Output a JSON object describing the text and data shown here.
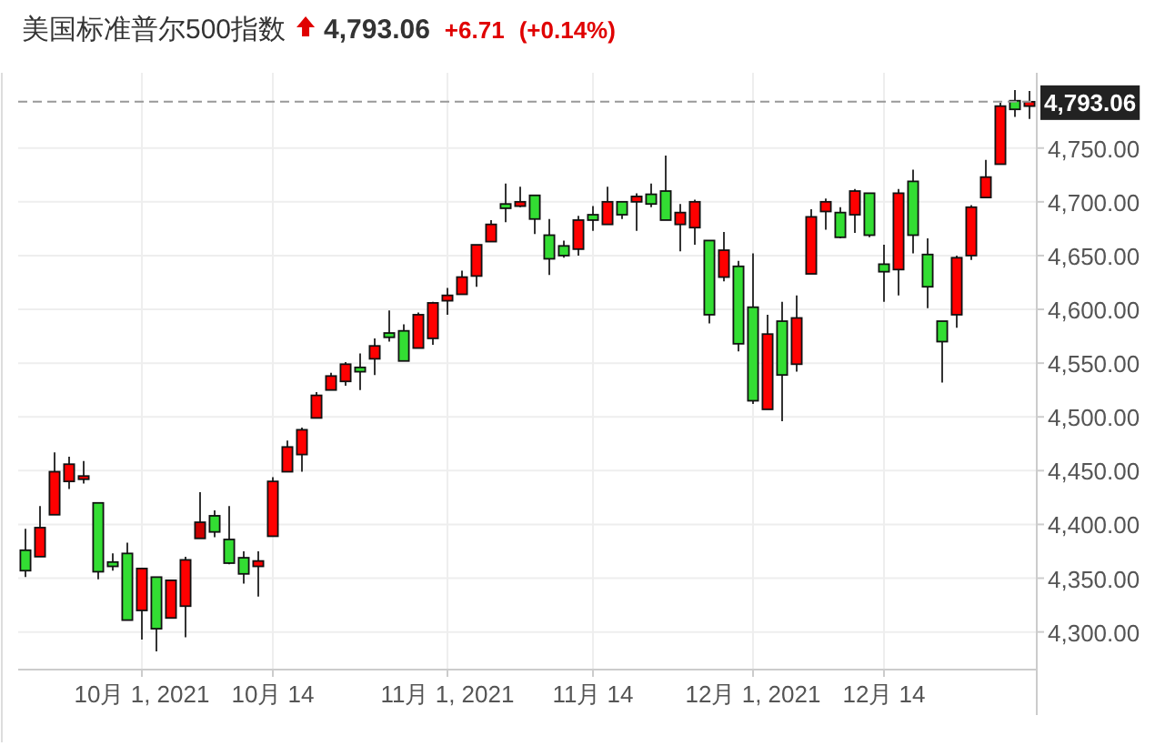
{
  "chart_data": {
    "type": "candlestick",
    "title": "美国标准普尔500指数",
    "annotations": [
      "4,793.06",
      "+6.71",
      "(+0.14%)"
    ],
    "categories": [
      null,
      null,
      null,
      null,
      null,
      null,
      null,
      null,
      "10月 1, 2021",
      null,
      null,
      null,
      null,
      null,
      null,
      null,
      null,
      "10月 14",
      null,
      null,
      null,
      null,
      null,
      null,
      null,
      null,
      null,
      null,
      null,
      "11月 1, 2021",
      null,
      null,
      null,
      null,
      null,
      null,
      null,
      null,
      null,
      "11月 14",
      null,
      null,
      null,
      null,
      null,
      null,
      null,
      null,
      null,
      null,
      "12月 1, 2021",
      null,
      null,
      null,
      null,
      null,
      null,
      null,
      null,
      "12月 14",
      null,
      null,
      null,
      null,
      null,
      null,
      null,
      null,
      null,
      null
    ],
    "ohlc": [
      [
        4376,
        4396,
        4351,
        4357
      ],
      [
        4370,
        4417,
        4370,
        4397
      ],
      [
        4409,
        4467,
        4409,
        4449
      ],
      [
        4440,
        4463,
        4433,
        4456
      ],
      [
        4442,
        4459,
        4438,
        4445
      ],
      [
        4420,
        4420,
        4349,
        4356
      ],
      [
        4365,
        4373,
        4357,
        4361
      ],
      [
        4373,
        4383,
        4311,
        4311
      ],
      [
        4320,
        4359,
        4293,
        4359
      ],
      [
        4351,
        4351,
        4282,
        4303
      ],
      [
        4313,
        4348,
        4313,
        4348
      ],
      [
        4324,
        4370,
        4295,
        4367
      ],
      [
        4387,
        4430,
        4387,
        4402
      ],
      [
        4408,
        4413,
        4388,
        4393
      ],
      [
        4386,
        4417,
        4363,
        4364
      ],
      [
        4369,
        4375,
        4345,
        4354
      ],
      [
        4361,
        4375,
        4333,
        4366
      ],
      [
        4389,
        4444,
        4389,
        4440
      ],
      [
        4449,
        4478,
        4449,
        4472
      ],
      [
        4465,
        4490,
        4449,
        4488
      ],
      [
        4499,
        4523,
        4499,
        4520
      ],
      [
        4525,
        4541,
        4525,
        4538
      ],
      [
        4533,
        4551,
        4529,
        4549
      ],
      [
        4546,
        4559,
        4525,
        4542
      ],
      [
        4554,
        4573,
        4539,
        4566
      ],
      [
        4578,
        4599,
        4570,
        4574
      ],
      [
        4580,
        4586,
        4552,
        4552
      ],
      [
        4564,
        4597,
        4564,
        4595
      ],
      [
        4573,
        4607,
        4567,
        4606
      ],
      [
        4608,
        4620,
        4595,
        4613
      ],
      [
        4614,
        4636,
        4614,
        4630
      ],
      [
        4631,
        4660,
        4621,
        4660
      ],
      [
        4663,
        4683,
        4663,
        4679
      ],
      [
        4698,
        4717,
        4681,
        4694
      ],
      [
        4696,
        4714,
        4695,
        4700
      ],
      [
        4706,
        4706,
        4670,
        4684
      ],
      [
        4669,
        4684,
        4632,
        4647
      ],
      [
        4659,
        4664,
        4648,
        4650
      ],
      [
        4656,
        4687,
        4650,
        4683
      ],
      [
        4688,
        4696,
        4673,
        4683
      ],
      [
        4679,
        4714,
        4679,
        4700
      ],
      [
        4700,
        4700,
        4684,
        4688
      ],
      [
        4700,
        4708,
        4673,
        4705
      ],
      [
        4707,
        4717,
        4695,
        4698
      ],
      [
        4710,
        4743,
        4683,
        4683
      ],
      [
        4679,
        4698,
        4654,
        4690
      ],
      [
        4676,
        4702,
        4660,
        4700
      ],
      [
        4664,
        4664,
        4587,
        4595
      ],
      [
        4630,
        4672,
        4626,
        4655
      ],
      [
        4640,
        4645,
        4561,
        4568
      ],
      [
        4602,
        4652,
        4512,
        4515
      ],
      [
        4507,
        4595,
        4507,
        4577
      ],
      [
        4589,
        4607,
        4496,
        4539
      ],
      [
        4549,
        4613,
        4542,
        4592
      ],
      [
        4633,
        4693,
        4633,
        4686
      ],
      [
        4691,
        4703,
        4674,
        4700
      ],
      [
        4690,
        4695,
        4666,
        4667
      ],
      [
        4688,
        4712,
        4671,
        4710
      ],
      [
        4708,
        4708,
        4667,
        4669
      ],
      [
        4642,
        4660,
        4607,
        4635
      ],
      [
        4637,
        4712,
        4613,
        4708
      ],
      [
        4719,
        4730,
        4652,
        4669
      ],
      [
        4651,
        4666,
        4601,
        4621
      ],
      [
        4589,
        4589,
        4532,
        4570
      ],
      [
        4595,
        4650,
        4583,
        4648
      ],
      [
        4650,
        4697,
        4646,
        4695
      ],
      [
        4704,
        4739,
        4704,
        4723
      ],
      [
        4735,
        4792,
        4735,
        4789
      ],
      [
        4794,
        4804,
        4779,
        4786
      ],
      [
        4789,
        4803,
        4777,
        4793.06
      ]
    ],
    "colors": [
      "#33dd33",
      "#ff0000",
      "#ff0000",
      "#ff0000",
      "#ff0000",
      "#33dd33",
      "#33dd33",
      "#33dd33",
      "#ff0000",
      "#33dd33",
      "#ff0000",
      "#ff0000",
      "#cc0000",
      "#33dd33",
      "#33dd33",
      "#33dd33",
      "#ff0000",
      "#ff0000",
      "#ff0000",
      "#ff0000",
      "#ff0000",
      "#ff0000",
      "#ff0000",
      "#33dd33",
      "#ff0000",
      "#33dd33",
      "#33dd33",
      "#ff0000",
      "#ff0000",
      "#ff0000",
      "#ff0000",
      "#ff0000",
      "#ff0000",
      "#33dd33",
      "#ff0000",
      "#33dd33",
      "#33dd33",
      "#33dd33",
      "#ff0000",
      "#33dd33",
      "#ff0000",
      "#33dd33",
      "#ff0000",
      "#33dd33",
      "#33dd33",
      "#ff0000",
      "#ff0000",
      "#33dd33",
      "#ff0000",
      "#33dd33",
      "#33dd33",
      "#ff0000",
      "#33dd33",
      "#ff0000",
      "#ff0000",
      "#ff0000",
      "#33dd33",
      "#ff0000",
      "#33dd33",
      "#33dd33",
      "#ff0000",
      "#33dd33",
      "#33dd33",
      "#33dd33",
      "#ff0000",
      "#ff0000",
      "#ff0000",
      "#ff0000",
      "#33dd33",
      "#ff0000"
    ],
    "ylim": [
      4265,
      4820
    ],
    "yticks": [
      {
        "value": 4300,
        "label": "4,300.00"
      },
      {
        "value": 4350,
        "label": "4,350.00"
      },
      {
        "value": 4400,
        "label": "4,400.00"
      },
      {
        "value": 4450,
        "label": "4,450.00"
      },
      {
        "value": 4500,
        "label": "4,500.00"
      },
      {
        "value": 4550,
        "label": "4,550.00"
      },
      {
        "value": 4600,
        "label": "4,600.00"
      },
      {
        "value": 4650,
        "label": "4,650.00"
      },
      {
        "value": 4700,
        "label": "4,700.00"
      },
      {
        "value": 4750,
        "label": "4,750.00"
      }
    ],
    "ref_lines": [
      {
        "axis": "y",
        "value": 4793.06,
        "label": "4,793.06",
        "color": "#999999",
        "line_style": "dashed"
      }
    ],
    "grid": true
  }
}
